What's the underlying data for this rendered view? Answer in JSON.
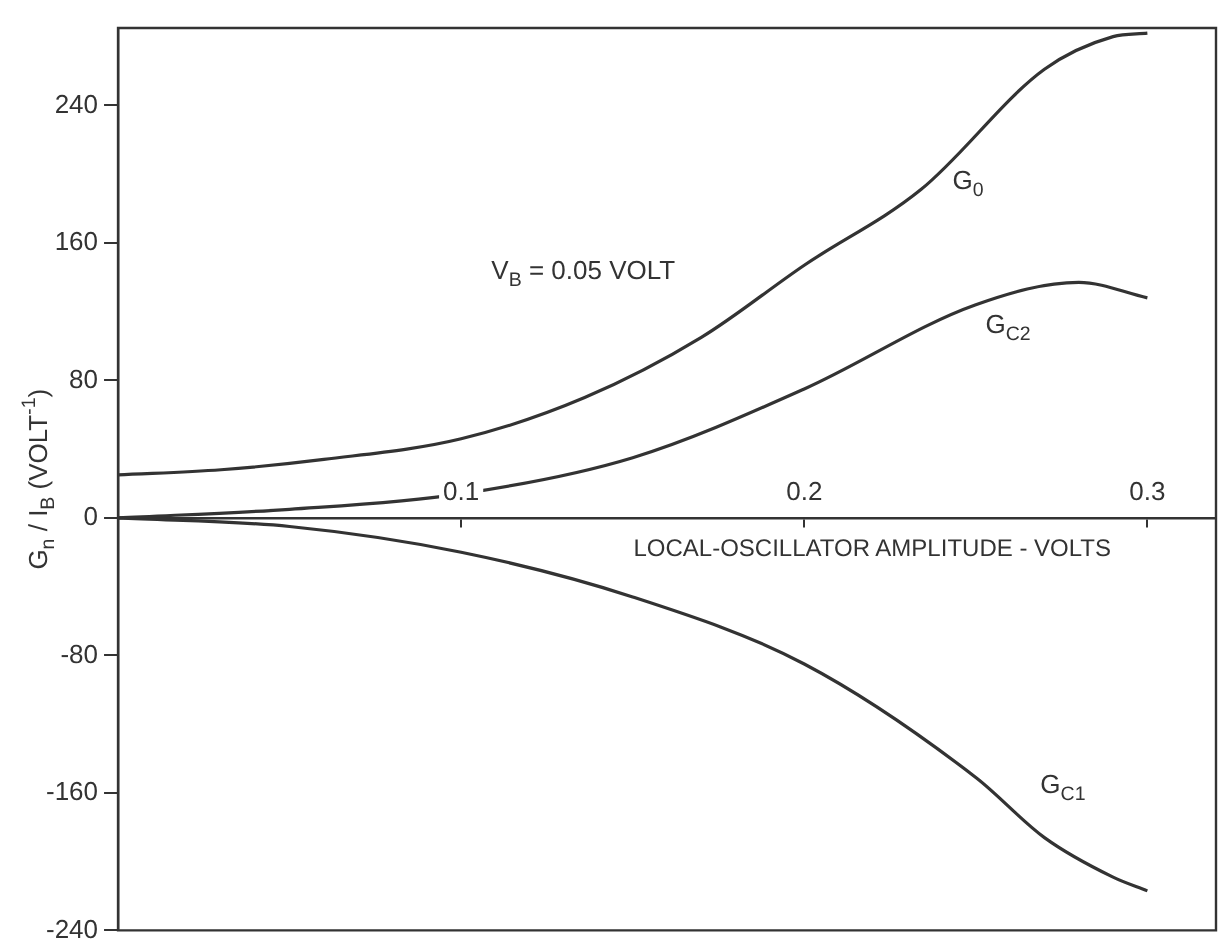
{
  "chart_data": {
    "type": "line",
    "ylabel": "G$_{n}$ / I$_{B}$ (VOLT$^{-1}$)",
    "xlabel": "LOCAL-OSCILLATOR AMPLITUDE - VOLTS",
    "xlim": [
      0,
      0.32
    ],
    "xticks": [
      0.1,
      0.2,
      0.3
    ],
    "ylim": [
      -240,
      285
    ],
    "yticks": [
      240,
      160,
      80,
      0,
      -80,
      -160,
      -240
    ],
    "grid": false,
    "legend": false,
    "marker": "none",
    "line_style": "solid",
    "series": [
      {
        "color": "#333333",
        "x": [
          0,
          0.03,
          0.06,
          0.1,
          0.136,
          0.17,
          0.2,
          0.234,
          0.27,
          0.29,
          0.3
        ],
        "values": [
          25,
          28,
          34,
          46,
          70,
          105,
          147,
          191,
          261,
          280,
          282
        ]
      },
      {
        "color": "#333333",
        "x": [
          0,
          0.05,
          0.1,
          0.15,
          0.2,
          0.25,
          0.28,
          0.3
        ],
        "values": [
          0,
          5,
          14,
          35,
          75,
          124,
          137,
          128
        ]
      },
      {
        "color": "#333333",
        "x": [
          0,
          0.05,
          0.1,
          0.15,
          0.2,
          0.25,
          0.27,
          0.29,
          0.3
        ],
        "values": [
          0,
          -5,
          -20,
          -46,
          -85,
          -151,
          -186,
          -209,
          -217
        ]
      }
    ],
    "annotations": [
      "V$_{B}$ = 0.05 VOLT",
      "G$_{0}$",
      "G$_{C2}$",
      "G$_{C1}$"
    ]
  }
}
